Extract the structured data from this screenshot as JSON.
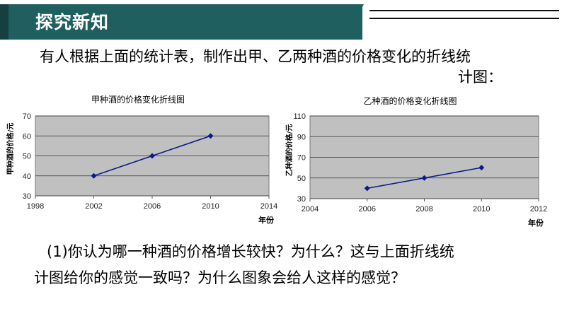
{
  "header": {
    "title": "探究新知"
  },
  "intro": {
    "line1": "有人根据上面的统计表，制作出甲、乙两种酒的价格变化的折线统",
    "line2": "计图："
  },
  "chart_data": [
    {
      "type": "line",
      "title": "甲种酒的价格变化折线图",
      "ylabel": "甲种酒的价格/元",
      "xlabel": "年份",
      "xlim": [
        1998,
        2014
      ],
      "xticks": [
        1998,
        2002,
        2006,
        2010,
        2014
      ],
      "ylim": [
        30,
        70
      ],
      "yticks": [
        30,
        40,
        50,
        60,
        70
      ],
      "grid": true,
      "series": [
        {
          "x": [
            2002,
            2006,
            2010
          ],
          "values": [
            40,
            50,
            60
          ]
        }
      ],
      "colors": {
        "plot_bg": "#c0c0c0",
        "line": "#0a1a8c"
      }
    },
    {
      "type": "line",
      "title": "乙种酒的价格变化折线图",
      "ylabel": "乙种酒的价格/元",
      "xlabel": "年份",
      "xlim": [
        2004,
        2012
      ],
      "xticks": [
        2004,
        2006,
        2008,
        2010,
        2012
      ],
      "ylim": [
        30,
        110
      ],
      "yticks": [
        30,
        50,
        70,
        90,
        110
      ],
      "grid": true,
      "series": [
        {
          "x": [
            2006,
            2008,
            2010
          ],
          "values": [
            40,
            50,
            60
          ]
        }
      ],
      "colors": {
        "plot_bg": "#c0c0c0",
        "line": "#0a1a8c"
      }
    }
  ],
  "question": {
    "line1": "(1)你认为哪一种酒的价格增长较快？为什么？这与上面折线统",
    "line2": "计图给你的感觉一致吗？为什么图象会给人这样的感觉？"
  }
}
